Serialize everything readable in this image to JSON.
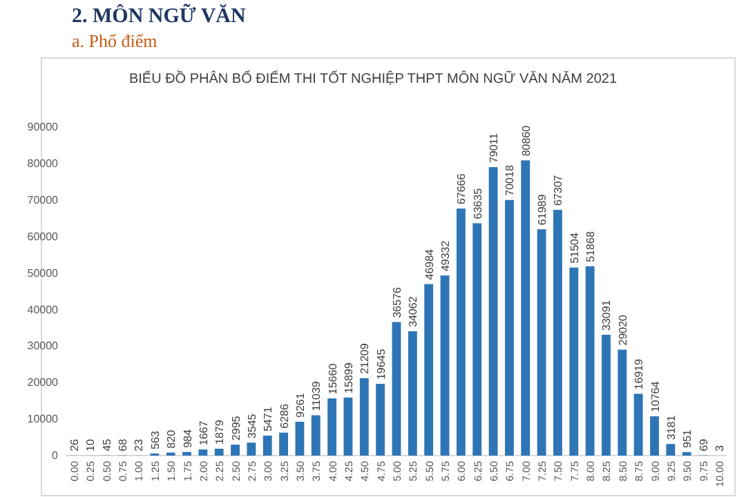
{
  "chart_data": {
    "type": "bar",
    "title": "BIỂU ĐỒ PHÂN BỐ ĐIỂM THI TỐT NGHIỆP THPT MÔN NGỮ VĂN NĂM 2021",
    "annotations": [
      "2.  MÔN NGỮ VĂN",
      "a.  Phổ điểm"
    ],
    "categories": [
      "0.00",
      "0.25",
      "0.50",
      "0.75",
      "1.00",
      "1.25",
      "1.50",
      "1.75",
      "2.00",
      "2.25",
      "2.50",
      "2.75",
      "3.00",
      "3.25",
      "3.50",
      "3.75",
      "4.00",
      "4.25",
      "4.50",
      "4.75",
      "5.00",
      "5.25",
      "5.50",
      "5.75",
      "6.00",
      "6.25",
      "6.50",
      "6.75",
      "7.00",
      "7.25",
      "7.50",
      "7.75",
      "8.00",
      "8.25",
      "8.50",
      "8.75",
      "9.00",
      "9.25",
      "9.50",
      "9.75",
      "10.00"
    ],
    "values": [
      26,
      10,
      45,
      68,
      23,
      563,
      820,
      984,
      1667,
      1879,
      2995,
      3545,
      5471,
      6286,
      9261,
      11039,
      15660,
      15899,
      21209,
      19645,
      36576,
      34062,
      46984,
      49332,
      67666,
      63635,
      79011,
      70018,
      80860,
      61989,
      67307,
      51504,
      51868,
      33091,
      29020,
      16919,
      10764,
      3181,
      951,
      69,
      3
    ],
    "color": "#2e75b6",
    "data_labels": true,
    "ylim": [
      0,
      90000
    ],
    "yticks": [
      0,
      10000,
      20000,
      30000,
      40000,
      50000,
      60000,
      70000,
      80000,
      90000
    ],
    "grid": false
  }
}
